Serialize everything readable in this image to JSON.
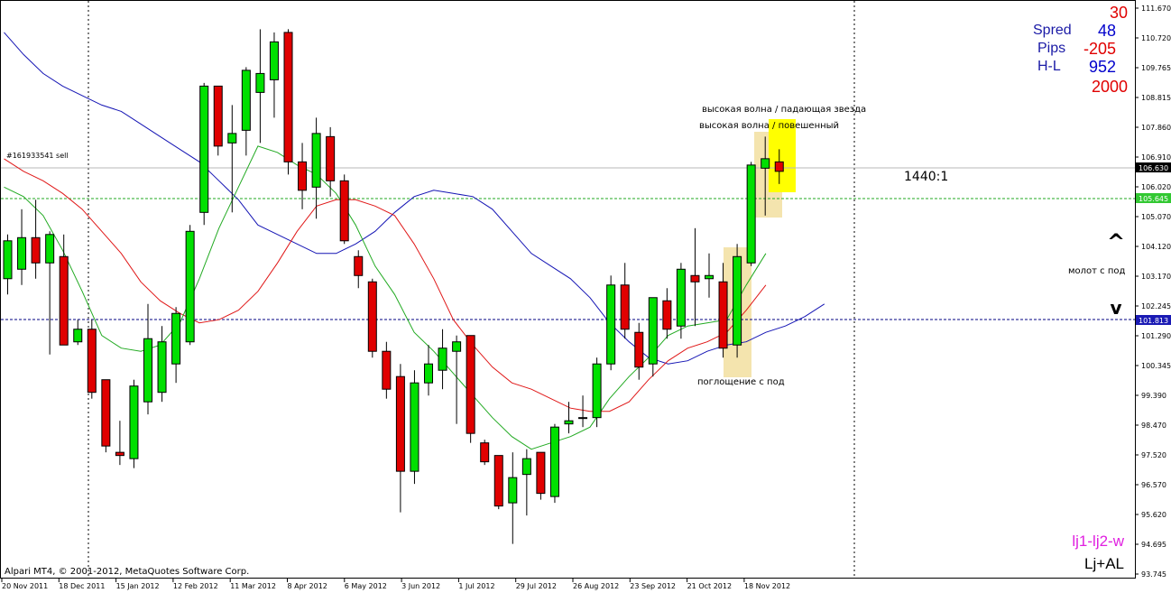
{
  "order": {
    "label": "#161933541 sell",
    "price": "106.630"
  },
  "price_lines": {
    "green_level": "105.645",
    "blue_level": "101.813"
  },
  "info_box": {
    "top_value": "30",
    "spread_label": "Spred",
    "spread_value": "48",
    "pips_label": "Pips",
    "pips_value": "-205",
    "hl_label": "H-L",
    "hl_value": "952",
    "bottom_value": "2000",
    "colors": {
      "red": "#e00000",
      "blue": "#0000cc"
    }
  },
  "ratio_label": "1440:1",
  "arrows": {
    "up": "^",
    "down": "v"
  },
  "annotations": {
    "high_wave_star": "высокая волна / падающая звезда",
    "high_wave_hanging": "высокая волна / повешенный",
    "hammer": "молот с под",
    "engulfing": "поглощение с под"
  },
  "footer": {
    "copyright": "Alpari MT4, © 2001-2012, MetaQuotes Software Corp.",
    "tag1": "lj1-lj2-w",
    "tag2": "Lj+AL"
  },
  "chart_data": {
    "type": "candlestick",
    "y_ticks": [
      "111.670",
      "110.720",
      "109.765",
      "108.815",
      "107.860",
      "106.910",
      "106.020",
      "105.070",
      "104.120",
      "103.170",
      "102.245",
      "101.290",
      "100.345",
      "99.390",
      "98.470",
      "97.520",
      "96.570",
      "95.620",
      "94.695",
      "93.745"
    ],
    "x_ticks": [
      "20 Nov 2011",
      "18 Dec 2011",
      "15 Jan 2012",
      "12 Feb 2012",
      "11 Mar 2012",
      "8 Apr 2012",
      "6 May 2012",
      "3 Jun 2012",
      "1 Jul 2012",
      "29 Jul 2012",
      "26 Aug 2012",
      "23 Sep 2012",
      "21 Oct 2012",
      "18 Nov 2012"
    ],
    "ylim": [
      93.745,
      111.67
    ],
    "candles": [
      {
        "o": 103.1,
        "h": 104.5,
        "l": 102.6,
        "c": 104.3
      },
      {
        "o": 103.4,
        "h": 105.3,
        "l": 102.9,
        "c": 104.4
      },
      {
        "o": 104.4,
        "h": 105.6,
        "l": 103.1,
        "c": 103.6
      },
      {
        "o": 103.6,
        "h": 104.6,
        "l": 100.7,
        "c": 104.5
      },
      {
        "o": 103.8,
        "h": 104.5,
        "l": 101.0,
        "c": 101.0
      },
      {
        "o": 101.1,
        "h": 101.8,
        "l": 101.0,
        "c": 101.5
      },
      {
        "o": 101.5,
        "h": 101.8,
        "l": 99.3,
        "c": 99.5
      },
      {
        "o": 99.9,
        "h": 99.9,
        "l": 97.6,
        "c": 97.8
      },
      {
        "o": 97.6,
        "h": 98.6,
        "l": 97.2,
        "c": 97.5
      },
      {
        "o": 97.4,
        "h": 99.9,
        "l": 97.1,
        "c": 99.7
      },
      {
        "o": 99.2,
        "h": 102.3,
        "l": 98.8,
        "c": 101.2
      },
      {
        "o": 99.5,
        "h": 101.6,
        "l": 99.2,
        "c": 101.1
      },
      {
        "o": 100.4,
        "h": 102.2,
        "l": 99.8,
        "c": 102.0
      },
      {
        "o": 101.1,
        "h": 104.8,
        "l": 101.0,
        "c": 104.6
      },
      {
        "o": 105.2,
        "h": 109.3,
        "l": 104.8,
        "c": 109.2
      },
      {
        "o": 109.2,
        "h": 109.2,
        "l": 107.0,
        "c": 107.3
      },
      {
        "o": 107.4,
        "h": 108.6,
        "l": 105.2,
        "c": 107.7
      },
      {
        "o": 107.8,
        "h": 109.8,
        "l": 107.0,
        "c": 109.7
      },
      {
        "o": 109.0,
        "h": 111.0,
        "l": 107.4,
        "c": 109.6
      },
      {
        "o": 109.4,
        "h": 110.9,
        "l": 108.2,
        "c": 110.6
      },
      {
        "o": 110.9,
        "h": 111.0,
        "l": 106.4,
        "c": 106.8
      },
      {
        "o": 106.8,
        "h": 107.4,
        "l": 105.3,
        "c": 105.9
      },
      {
        "o": 106.0,
        "h": 108.2,
        "l": 105.0,
        "c": 107.7
      },
      {
        "o": 107.6,
        "h": 107.9,
        "l": 105.7,
        "c": 106.2
      },
      {
        "o": 106.2,
        "h": 106.4,
        "l": 104.2,
        "c": 104.3
      },
      {
        "o": 103.8,
        "h": 104.0,
        "l": 102.8,
        "c": 103.2
      },
      {
        "o": 103.0,
        "h": 103.1,
        "l": 100.6,
        "c": 100.8
      },
      {
        "o": 100.8,
        "h": 101.1,
        "l": 99.3,
        "c": 99.6
      },
      {
        "o": 100.0,
        "h": 100.4,
        "l": 95.7,
        "c": 97.0
      },
      {
        "o": 97.0,
        "h": 100.2,
        "l": 96.6,
        "c": 99.8
      },
      {
        "o": 99.8,
        "h": 101.0,
        "l": 99.4,
        "c": 100.4
      },
      {
        "o": 100.2,
        "h": 101.5,
        "l": 99.6,
        "c": 100.9
      },
      {
        "o": 100.8,
        "h": 101.3,
        "l": 98.5,
        "c": 101.1
      },
      {
        "o": 101.3,
        "h": 101.3,
        "l": 97.9,
        "c": 98.2
      },
      {
        "o": 97.9,
        "h": 98.0,
        "l": 97.2,
        "c": 97.3
      },
      {
        "o": 97.5,
        "h": 97.5,
        "l": 95.8,
        "c": 95.9
      },
      {
        "o": 96.0,
        "h": 97.6,
        "l": 94.7,
        "c": 96.8
      },
      {
        "o": 96.9,
        "h": 97.7,
        "l": 95.6,
        "c": 97.4
      },
      {
        "o": 97.6,
        "h": 97.6,
        "l": 96.1,
        "c": 96.3
      },
      {
        "o": 96.2,
        "h": 98.5,
        "l": 96.0,
        "c": 98.4
      },
      {
        "o": 98.5,
        "h": 99.2,
        "l": 98.2,
        "c": 98.6
      },
      {
        "o": 98.7,
        "h": 99.4,
        "l": 98.4,
        "c": 98.7
      },
      {
        "o": 98.7,
        "h": 100.6,
        "l": 98.4,
        "c": 100.4
      },
      {
        "o": 100.4,
        "h": 103.2,
        "l": 100.2,
        "c": 102.9
      },
      {
        "o": 102.9,
        "h": 103.6,
        "l": 101.2,
        "c": 101.5
      },
      {
        "o": 101.4,
        "h": 101.7,
        "l": 99.9,
        "c": 100.3
      },
      {
        "o": 100.4,
        "h": 102.4,
        "l": 100.0,
        "c": 102.5
      },
      {
        "o": 102.4,
        "h": 102.8,
        "l": 101.2,
        "c": 101.5
      },
      {
        "o": 101.6,
        "h": 103.6,
        "l": 101.2,
        "c": 103.4
      },
      {
        "o": 103.2,
        "h": 104.7,
        "l": 101.6,
        "c": 103.0
      },
      {
        "o": 103.1,
        "h": 103.9,
        "l": 102.5,
        "c": 103.2
      },
      {
        "o": 103.0,
        "h": 103.6,
        "l": 100.6,
        "c": 100.9
      },
      {
        "o": 101.0,
        "h": 104.2,
        "l": 100.6,
        "c": 103.8
      },
      {
        "o": 103.6,
        "h": 106.8,
        "l": 103.5,
        "c": 106.7
      },
      {
        "o": 106.6,
        "h": 107.6,
        "l": 105.1,
        "c": 106.9
      },
      {
        "o": 106.8,
        "h": 107.2,
        "l": 106.1,
        "c": 106.5
      }
    ],
    "ma_blue": [
      110.9,
      110.2,
      109.6,
      109.2,
      108.9,
      108.6,
      108.4,
      108.0,
      107.6,
      107.2,
      106.8,
      106.2,
      105.6,
      104.8,
      104.5,
      104.2,
      103.9,
      103.9,
      104.2,
      104.6,
      105.2,
      105.7,
      105.9,
      105.8,
      105.7,
      105.3,
      104.6,
      103.9,
      103.5,
      103.1,
      102.5,
      101.7,
      101.1,
      100.6,
      100.4,
      100.5,
      100.8,
      101.0,
      101.1,
      101.4,
      101.6,
      101.9,
      102.3
    ],
    "ma_red": [
      106.9,
      106.5,
      106.2,
      105.8,
      105.3,
      104.6,
      103.9,
      103.0,
      102.4,
      102.0,
      101.7,
      101.8,
      102.1,
      102.7,
      103.6,
      104.6,
      105.4,
      105.6,
      105.6,
      105.4,
      105.1,
      104.2,
      103.1,
      101.8,
      101.0,
      100.3,
      99.8,
      99.6,
      99.3,
      99.0,
      98.9,
      98.9,
      99.2,
      99.9,
      100.5,
      100.9,
      101.1,
      101.4,
      102.1,
      102.9
    ],
    "ma_green": [
      106.0,
      105.7,
      105.1,
      104.0,
      102.7,
      101.3,
      100.9,
      100.8,
      101.0,
      101.7,
      103.1,
      104.7,
      106.0,
      107.3,
      107.1,
      106.7,
      106.4,
      105.8,
      104.8,
      103.5,
      102.6,
      101.4,
      100.8,
      100.1,
      99.4,
      98.7,
      98.1,
      97.7,
      97.9,
      98.1,
      98.4,
      99.3,
      100.0,
      100.6,
      101.3,
      101.6,
      101.7,
      101.8,
      102.9,
      103.9
    ]
  }
}
